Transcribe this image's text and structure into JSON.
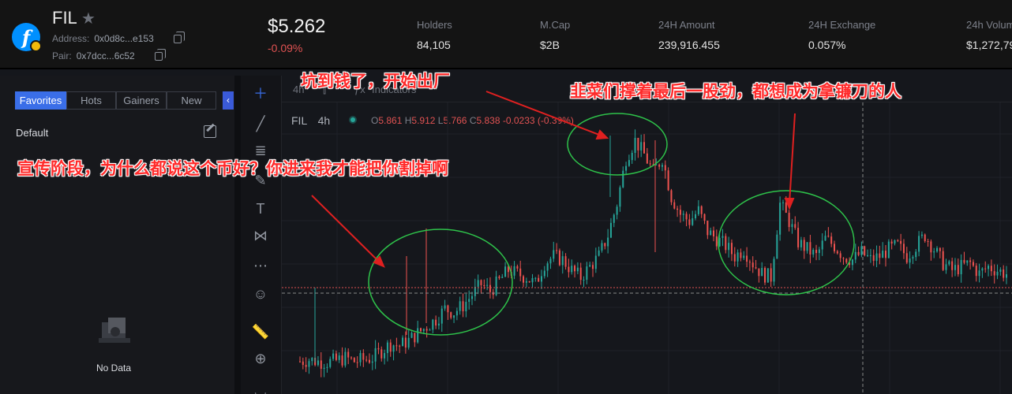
{
  "header": {
    "token": "FIL",
    "address_label": "Address:",
    "address_value": "0x0d8c...e153",
    "pair_label": "Pair:",
    "pair_value": "0x7dcc...6c52",
    "price": "$5.262",
    "change": "-0.09%",
    "stats": [
      {
        "label": "Holders",
        "value": "84,105"
      },
      {
        "label": "M.Cap",
        "value": "$2B"
      },
      {
        "label": "24H Amount",
        "value": "239,916.455"
      },
      {
        "label": "24H Exchange",
        "value": "0.057%"
      },
      {
        "label": "24h Volum",
        "value": "$1,272,79"
      }
    ]
  },
  "sidebar": {
    "tabs": [
      "Favorites",
      "Hots",
      "Gainers",
      "New"
    ],
    "default_label": "Default",
    "no_data": "No Data"
  },
  "chart": {
    "interval_btn": "4h",
    "indicators_btn": "Indicators",
    "symbol": "FIL",
    "interval": "4h",
    "ohlc": {
      "o_label": "O",
      "o": "5.861",
      "h_label": "H",
      "h": "5.912",
      "l_label": "L",
      "l": "5.766",
      "c_label": "C",
      "c": "5.838",
      "chg": "-0.0233 (-0.39%)"
    }
  },
  "annotations": {
    "a1": "坑到钱了，开始出厂",
    "a2": "韭菜们撑着最后一股劲，都想成为拿镰刀的人",
    "a3": "宣传阶段，为什么都说这个币好？你进来我才能把你割掉啊"
  },
  "colors": {
    "up": "#26a69a",
    "down": "#ef5350",
    "accent": "#3a6ee8",
    "annotation": "#ff2a2a",
    "circle": "#2ec24a"
  },
  "chart_data": {
    "type": "candlestick",
    "series": [
      {
        "name": "FIL",
        "values": [
          2.0,
          2.05,
          2.0,
          1.98,
          2.02,
          2.1,
          2.0,
          2.05,
          2.1,
          2.3,
          2.5,
          2.45,
          2.6,
          2.8,
          3.0,
          3.2,
          3.5,
          3.4,
          3.6,
          3.9,
          4.2,
          4.0,
          4.3,
          4.6,
          4.5,
          4.4,
          4.2,
          4.8,
          5.0,
          4.9,
          4.6,
          4.4,
          4.7,
          5.0,
          5.6,
          6.5,
          7.8,
          8.3,
          7.9,
          7.4,
          7.8,
          6.7,
          6.2,
          6.0,
          6.3,
          5.7,
          5.5,
          5.3,
          5.0,
          5.2,
          4.8,
          4.5,
          4.4,
          6.5,
          6.0,
          5.4,
          5.2,
          5.0,
          5.5,
          5.3,
          5.0,
          4.9,
          5.1,
          4.9,
          5.0,
          5.2,
          5.3,
          5.0,
          5.3,
          5.6,
          5.2,
          4.8,
          4.6,
          4.7,
          4.8,
          4.5,
          4.7,
          4.6,
          4.5
        ]
      }
    ]
  }
}
